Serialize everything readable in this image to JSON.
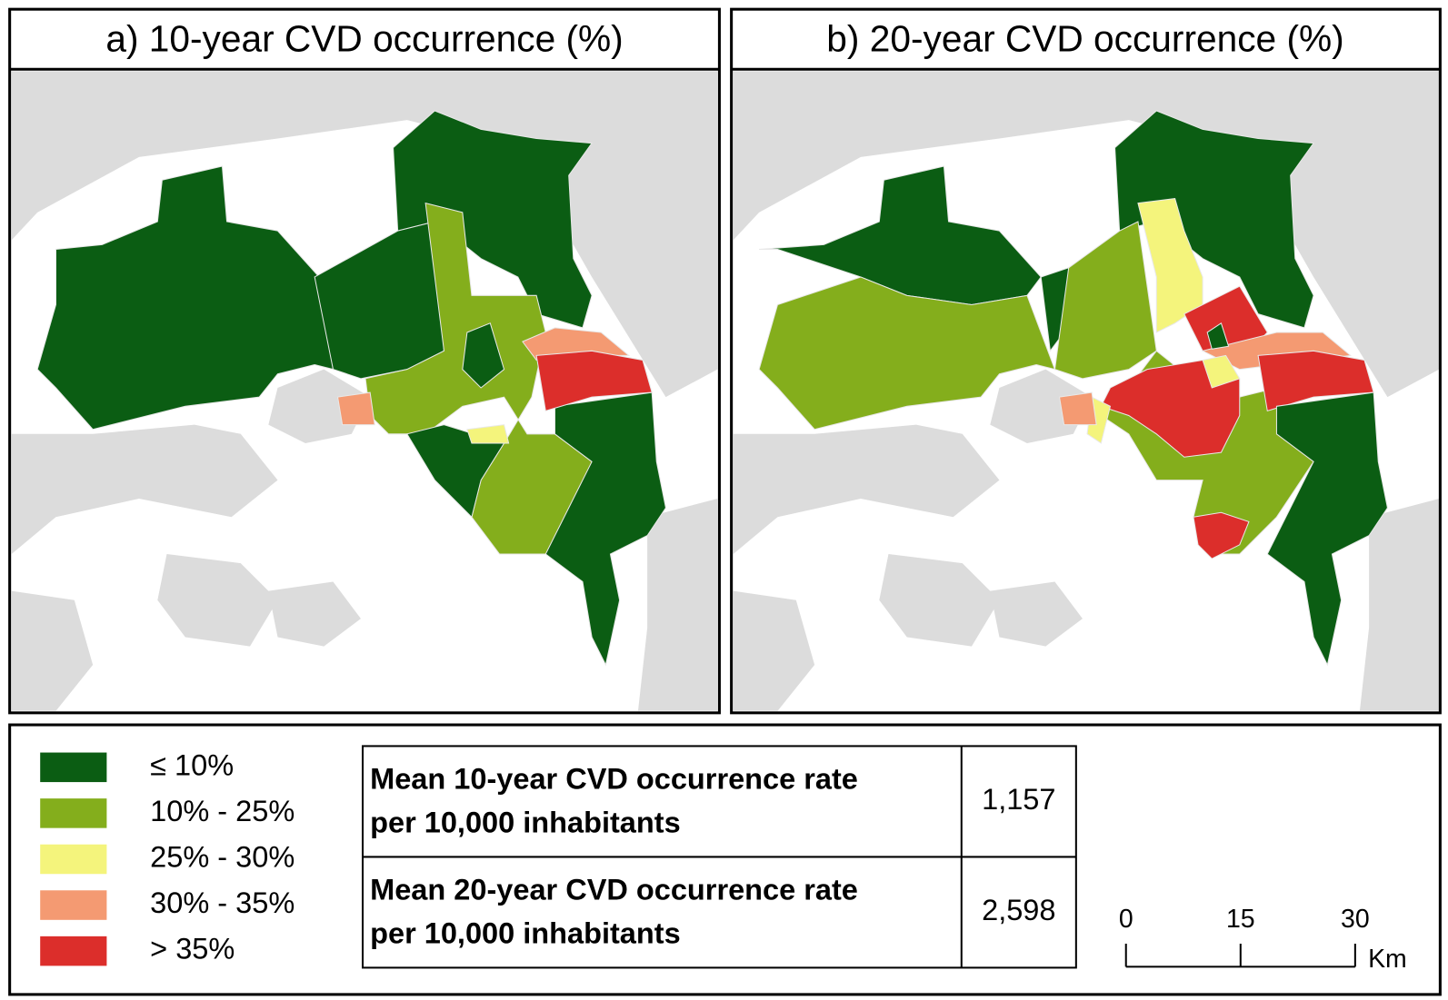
{
  "panels": [
    {
      "title": "a) 10-year CVD occurrence (%)"
    },
    {
      "title": "b) 20-year CVD occurrence (%)"
    }
  ],
  "legend": [
    {
      "label": "≤ 10%",
      "color": "#0b5d13"
    },
    {
      "label": "10% - 25%",
      "color": "#84ae1c"
    },
    {
      "label": "25% - 30%",
      "color": "#f4f47c"
    },
    {
      "label": "30% - 35%",
      "color": "#f49a72"
    },
    {
      "label": "> 35%",
      "color": "#dc2e2b"
    }
  ],
  "table": {
    "rows": [
      {
        "label": [
          "Mean 10-year CVD occurrence rate",
          "per 10,000 inhabitants"
        ],
        "value": "1,157"
      },
      {
        "label": [
          "Mean 20-year CVD occurrence rate",
          "per 10,000 inhabitants"
        ],
        "value": "2,598"
      }
    ]
  },
  "scale_bar": {
    "ticks": [
      0,
      15,
      30
    ],
    "unit": "Km"
  }
}
